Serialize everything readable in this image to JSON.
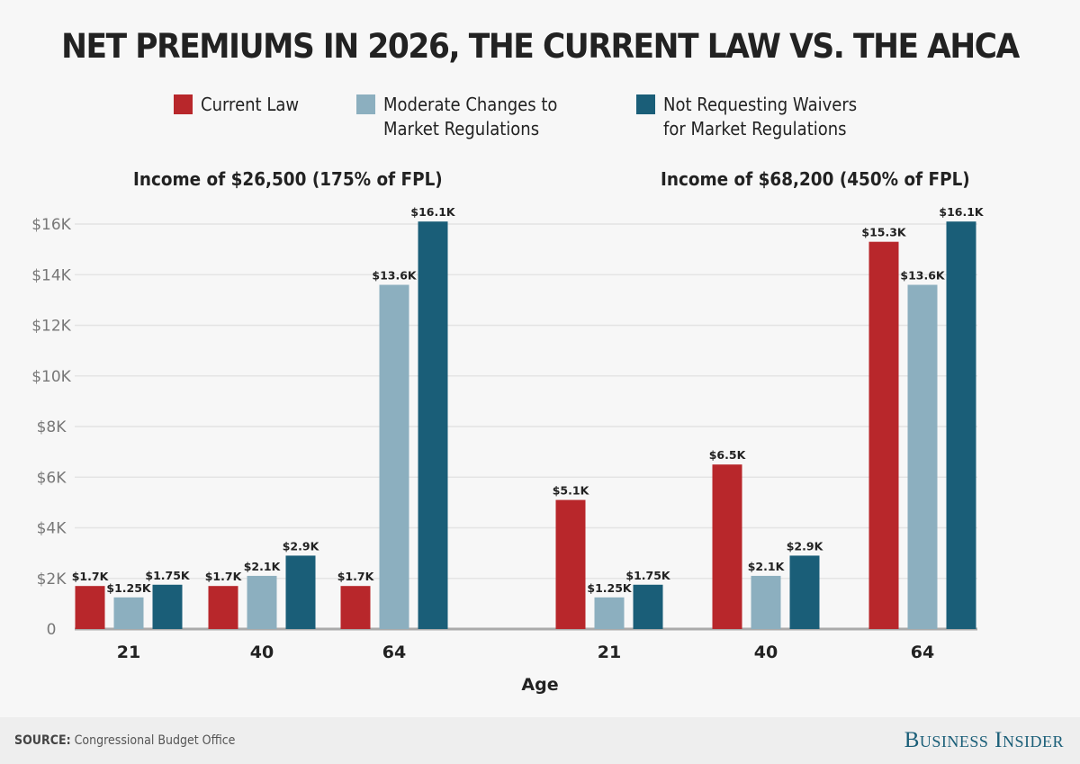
{
  "title": "NET PREMIUMS IN 2026, THE CURRENT LAW VS. THE AHCA",
  "legend": [
    {
      "label": "Current Law",
      "color": "#b8272b"
    },
    {
      "label": "Moderate Changes to\nMarket Regulations",
      "color": "#8cafbf"
    },
    {
      "label": "Not Requesting Waivers\nfor Market Regulations",
      "color": "#1a5e78"
    }
  ],
  "footer": {
    "source_label": "SOURCE:",
    "source_text": "Congressional Budget Office",
    "brand": "Business Insider"
  },
  "chart_data": [
    {
      "type": "bar",
      "title": "Income of $26,500 (175% of FPL)",
      "xlabel": "Age",
      "ylabel": "",
      "categories": [
        "21",
        "40",
        "64"
      ],
      "ylim": [
        0,
        16000
      ],
      "yticks": [
        0,
        2000,
        4000,
        6000,
        8000,
        10000,
        12000,
        14000,
        16000
      ],
      "ytick_labels": [
        "0",
        "$2K",
        "$4K",
        "$6K",
        "$8K",
        "$10K",
        "$12K",
        "$14K",
        "$16K"
      ],
      "grid": true,
      "series": [
        {
          "name": "Current Law",
          "values": [
            1700,
            1700,
            1700
          ],
          "labels": [
            "$1.7K",
            "$1.7K",
            "$1.7K"
          ]
        },
        {
          "name": "Moderate Changes to Market Regulations",
          "values": [
            1250,
            2100,
            13600
          ],
          "labels": [
            "$1.25K",
            "$2.1K",
            "$13.6K"
          ]
        },
        {
          "name": "Not Requesting Waivers for Market Regulations",
          "values": [
            1750,
            2900,
            16100
          ],
          "labels": [
            "$1.75K",
            "$2.9K",
            "$16.1K"
          ]
        }
      ]
    },
    {
      "type": "bar",
      "title": "Income of $68,200 (450% of FPL)",
      "xlabel": "Age",
      "ylabel": "",
      "categories": [
        "21",
        "40",
        "64"
      ],
      "ylim": [
        0,
        16000
      ],
      "grid": true,
      "series": [
        {
          "name": "Current Law",
          "values": [
            5100,
            6500,
            15300
          ],
          "labels": [
            "$5.1K",
            "$6.5K",
            "$15.3K"
          ]
        },
        {
          "name": "Moderate Changes to Market Regulations",
          "values": [
            1250,
            2100,
            13600
          ],
          "labels": [
            "$1.25K",
            "$2.1K",
            "$13.6K"
          ]
        },
        {
          "name": "Not Requesting Waivers for Market Regulations",
          "values": [
            1750,
            2900,
            16100
          ],
          "labels": [
            "$1.75K",
            "$2.9K",
            "$16.1K"
          ]
        }
      ]
    }
  ]
}
